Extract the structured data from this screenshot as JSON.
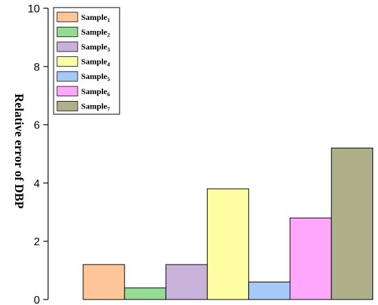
{
  "chart_data": {
    "type": "bar",
    "title": "",
    "xlabel": "",
    "ylabel": "Relative error of DBP",
    "ylim": [
      0,
      10
    ],
    "yticks": [
      0,
      2,
      4,
      6,
      8,
      10
    ],
    "legend_position": "top-left",
    "series": [
      {
        "name": "Sample",
        "subscript": "1",
        "value": 1.2,
        "color": "#FDC79A"
      },
      {
        "name": "Sample",
        "subscript": "2",
        "value": 0.4,
        "color": "#95DA95"
      },
      {
        "name": "Sample",
        "subscript": "3",
        "value": 1.2,
        "color": "#C9B2DA"
      },
      {
        "name": "Sample",
        "subscript": "4",
        "value": 3.8,
        "color": "#FFFEA3"
      },
      {
        "name": "Sample",
        "subscript": "5",
        "value": 0.6,
        "color": "#A6C9F7"
      },
      {
        "name": "Sample",
        "subscript": "6",
        "value": 2.8,
        "color": "#FFA8FB"
      },
      {
        "name": "Sample",
        "subscript": "7",
        "value": 5.2,
        "color": "#AEB08A"
      }
    ]
  }
}
